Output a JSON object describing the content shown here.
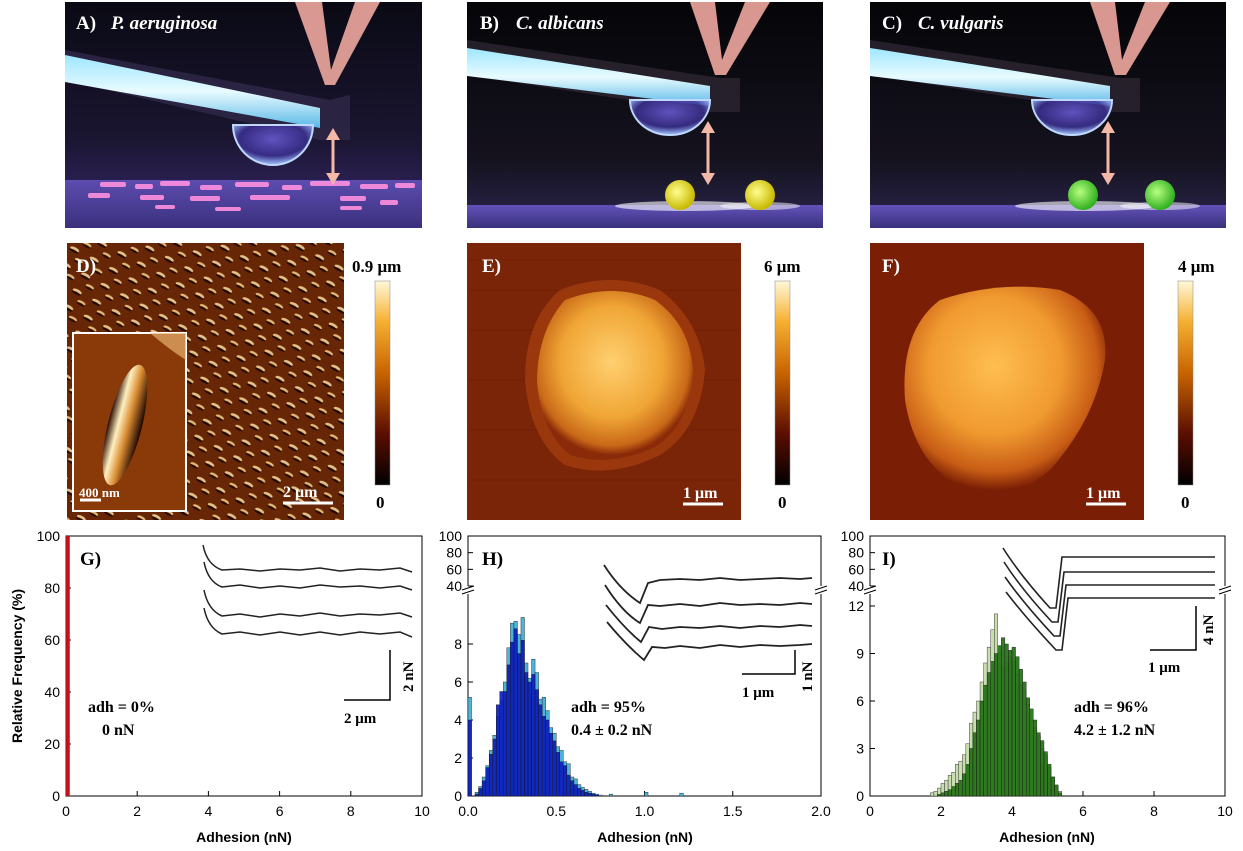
{
  "panels": {
    "A": {
      "letter": "A)",
      "species": "P. aeruginosa"
    },
    "B": {
      "letter": "B)",
      "species": "C. albicans"
    },
    "C": {
      "letter": "C)",
      "species": "C. vulgaris"
    },
    "D": {
      "letter": "D)",
      "scale": "2 μm",
      "inset_scale": "400 nm",
      "cbar_max": "0.9 μm",
      "cbar_min": "0"
    },
    "E": {
      "letter": "E)",
      "scale": "1 μm",
      "cbar_max": "6 μm",
      "cbar_min": "0"
    },
    "F": {
      "letter": "F)",
      "scale": "1 μm",
      "cbar_max": "4 μm",
      "cbar_min": "0"
    }
  },
  "colors": {
    "red_bar": "#c1121f",
    "light_blue": "#4fb3d9",
    "dark_blue": "#0a18b8",
    "light_green": "#c8ddb0",
    "dark_green": "#1e6e10"
  },
  "chart_data": [
    {
      "type": "bar",
      "panel": "G)",
      "xlabel": "Adhesion (nN)",
      "ylabel": "Relative Frequency (%)",
      "xlim": [
        0,
        10
      ],
      "ylim": [
        0,
        100
      ],
      "xticks": [
        "0",
        "2",
        "4",
        "6",
        "8",
        "10"
      ],
      "yticks": [
        "0",
        "20",
        "40",
        "60",
        "80",
        "100"
      ],
      "bars": [
        {
          "x": 0.05,
          "value": 100
        }
      ],
      "annotation": [
        "adh = 0%",
        "0 nN"
      ],
      "inset_scale": {
        "x": "2 μm",
        "y": "2 nN"
      }
    },
    {
      "type": "bar",
      "panel": "H)",
      "xlabel": "Adhesion (nN)",
      "xlim": [
        0,
        2.0
      ],
      "ylim_lower": [
        0,
        10
      ],
      "ylim_upper": [
        40,
        100
      ],
      "xticks": [
        "0.0",
        "0.5",
        "1.0",
        "1.5",
        "2.0"
      ],
      "yticks_lower": [
        "0",
        "2",
        "4",
        "6",
        "8"
      ],
      "yticks_upper": [
        "40",
        "60",
        "80",
        "100"
      ],
      "bin_width": 0.02,
      "bin_start": 0.0,
      "series": [
        {
          "values": [
            5.2,
            0,
            0.2,
            0.5,
            1.0,
            1.6,
            2.4,
            3.2,
            4.2,
            5.0,
            6.0,
            7.8,
            9.1,
            9.2,
            8.5,
            9.4,
            7.0,
            6.2,
            7.2,
            6.5,
            5.1,
            5.2,
            4.5,
            3.6,
            3.3,
            2.6,
            2.4,
            1.8,
            1.7,
            1.0,
            0.9,
            0.6,
            0.45,
            0.35,
            0.25,
            0.15,
            0.1,
            0.05,
            0,
            0,
            0.1,
            0,
            0,
            0,
            0,
            0,
            0,
            0,
            0,
            0,
            0.2,
            0,
            0,
            0,
            0,
            0,
            0,
            0,
            0,
            0,
            0.15
          ]
        },
        {
          "values": [
            4.0,
            0,
            0.1,
            0.4,
            0.8,
            1.5,
            2.2,
            3.0,
            4.8,
            5.5,
            5.5,
            6.9,
            8.1,
            8.8,
            7.5,
            8.2,
            6.5,
            6.0,
            6.4,
            5.6,
            4.8,
            4.2,
            4.0,
            3.3,
            2.9,
            2.3,
            1.8,
            1.6,
            1.1,
            0.8,
            0.6,
            0.4,
            0.3,
            0.2,
            0.15,
            0.1,
            0.05,
            0,
            0,
            0,
            0,
            0,
            0,
            0,
            0,
            0,
            0,
            0,
            0,
            0,
            0,
            0,
            0,
            0,
            0,
            0,
            0,
            0,
            0,
            0,
            0
          ]
        }
      ],
      "annotation": [
        "adh = 95%",
        "0.4 ± 0.2 nN"
      ],
      "inset_scale": {
        "x": "1 μm",
        "y": "1 nN"
      }
    },
    {
      "type": "bar",
      "panel": "I)",
      "xlabel": "Adhesion (nN)",
      "xlim": [
        0,
        10
      ],
      "ylim_lower": [
        0,
        12
      ],
      "ylim_upper": [
        40,
        100
      ],
      "xticks": [
        "0",
        "2",
        "4",
        "6",
        "8",
        "10"
      ],
      "yticks_lower": [
        "0",
        "3",
        "6",
        "9",
        "12"
      ],
      "yticks_upper": [
        "40",
        "60",
        "80",
        "100"
      ],
      "bin_width": 0.1,
      "bin_start": 1.7,
      "series": [
        {
          "values": [
            0.2,
            0.3,
            0.5,
            0.8,
            1.0,
            1.3,
            1.5,
            2.0,
            2.2,
            2.6,
            3.3,
            4.6,
            5.3,
            6.0,
            7.2,
            8.4,
            9.4,
            10.5,
            11.5,
            9.0,
            8.1,
            8.4,
            8.8,
            8.5,
            7.7,
            7.0,
            6.6,
            5.8,
            4.8,
            4.3,
            3.8,
            3.0,
            2.6,
            1.8,
            1.2,
            0.6,
            0.3
          ]
        },
        {
          "values": [
            0,
            0,
            0.1,
            0.2,
            0.3,
            0.4,
            0.6,
            0.8,
            1.0,
            1.4,
            2.0,
            3.0,
            4.0,
            4.8,
            6.0,
            7.0,
            7.8,
            8.5,
            9.0,
            9.5,
            10.0,
            9.6,
            9.2,
            9.4,
            8.8,
            8.0,
            7.2,
            6.2,
            5.5,
            4.8,
            4.0,
            3.5,
            2.8,
            2.0,
            1.2,
            0.7,
            0.2
          ]
        }
      ],
      "annotation": [
        "adh = 96%",
        "4.2 ± 1.2 nN"
      ],
      "inset_scale": {
        "x": "1 μm",
        "y": "4 nN"
      }
    }
  ]
}
